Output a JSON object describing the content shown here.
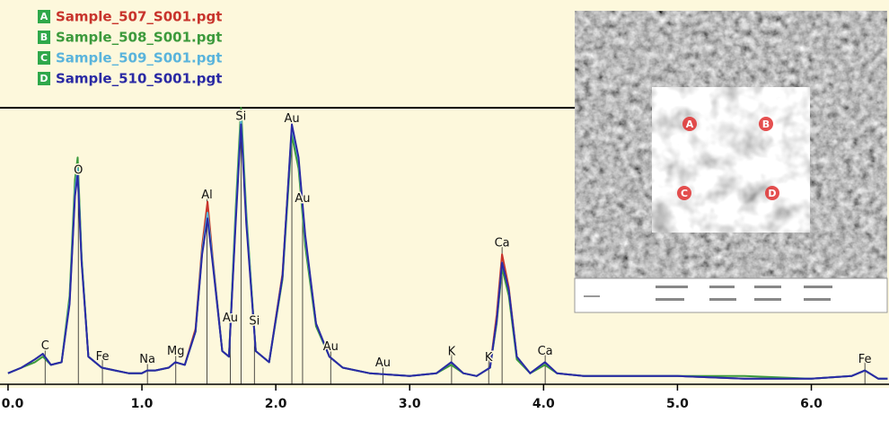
{
  "chart_data": {
    "type": "line",
    "x": [
      0.0,
      0.1,
      0.2,
      0.26,
      0.32,
      0.4,
      0.46,
      0.5,
      0.52,
      0.55,
      0.6,
      0.7,
      0.8,
      0.9,
      1.0,
      1.04,
      1.1,
      1.2,
      1.25,
      1.32,
      1.4,
      1.45,
      1.49,
      1.53,
      1.6,
      1.65,
      1.7,
      1.74,
      1.78,
      1.85,
      1.95,
      2.05,
      2.12,
      2.17,
      2.22,
      2.3,
      2.4,
      2.5,
      2.7,
      3.0,
      3.2,
      3.31,
      3.4,
      3.5,
      3.6,
      3.65,
      3.69,
      3.74,
      3.8,
      3.9,
      4.01,
      4.1,
      4.3,
      4.6,
      5.0,
      5.5,
      6.0,
      6.3,
      6.4,
      6.5,
      6.57
    ],
    "series": [
      {
        "label": "A",
        "name": "Sample_507_S001.pgt",
        "color": "#c8342c",
        "values": [
          4,
          6,
          9,
          11,
          7,
          8,
          30,
          70,
          79,
          45,
          10,
          6,
          5,
          4,
          4,
          5,
          5,
          6,
          8,
          7,
          20,
          50,
          66,
          45,
          12,
          10,
          60,
          97,
          60,
          12,
          8,
          40,
          92,
          80,
          52,
          22,
          10,
          6,
          4,
          3,
          4,
          8,
          4,
          3,
          6,
          25,
          47,
          35,
          10,
          4,
          8,
          4,
          3,
          3,
          3,
          2,
          2,
          3,
          5,
          2,
          2
        ]
      },
      {
        "label": "B",
        "name": "Sample_508_S001.pgt",
        "color": "#3c9a3c",
        "values": [
          4,
          6,
          8,
          10,
          7,
          8,
          32,
          74,
          82,
          46,
          10,
          6,
          5,
          4,
          4,
          5,
          5,
          6,
          8,
          7,
          19,
          48,
          62,
          44,
          12,
          10,
          63,
          100,
          62,
          12,
          8,
          38,
          90,
          78,
          50,
          21,
          10,
          6,
          4,
          3,
          4,
          7,
          4,
          3,
          6,
          22,
          42,
          32,
          9,
          4,
          7,
          4,
          3,
          3,
          3,
          3,
          2,
          3,
          5,
          2,
          2
        ]
      },
      {
        "label": "C",
        "name": "Sample_509_S001.pgt",
        "color": "#5ab4dc",
        "values": [
          4,
          6,
          9,
          11,
          7,
          8,
          30,
          70,
          78,
          45,
          10,
          6,
          5,
          4,
          4,
          5,
          5,
          6,
          8,
          7,
          19,
          48,
          62,
          44,
          12,
          10,
          60,
          96,
          60,
          12,
          8,
          39,
          93,
          81,
          53,
          22,
          10,
          6,
          4,
          3,
          4,
          8,
          4,
          3,
          6,
          23,
          44,
          34,
          10,
          4,
          8,
          4,
          3,
          3,
          3,
          2,
          2,
          3,
          5,
          2,
          2
        ]
      },
      {
        "label": "D",
        "name": "Sample_510_S001.pgt",
        "color": "#2a2aa4",
        "values": [
          4,
          6,
          9,
          11,
          7,
          8,
          29,
          68,
          76,
          44,
          10,
          6,
          5,
          4,
          4,
          5,
          5,
          6,
          8,
          7,
          19,
          47,
          60,
          43,
          12,
          10,
          58,
          94,
          58,
          12,
          8,
          39,
          94,
          82,
          54,
          22,
          10,
          6,
          4,
          3,
          4,
          8,
          4,
          3,
          6,
          23,
          44,
          34,
          10,
          4,
          8,
          4,
          3,
          3,
          3,
          2,
          2,
          3,
          5,
          2,
          2
        ]
      }
    ],
    "xlim": [
      -0.06,
      6.58
    ],
    "ylim": [
      0,
      100
    ],
    "xticks": [
      {
        "value": 0,
        "label": "0.0"
      },
      {
        "value": 1,
        "label": "1.0"
      },
      {
        "value": 2,
        "label": "2.0"
      },
      {
        "value": 3,
        "label": "3.0"
      },
      {
        "value": 4,
        "label": "4.0"
      },
      {
        "value": 5,
        "label": "5.0"
      },
      {
        "value": 6,
        "label": "6.0"
      }
    ],
    "peaks": [
      {
        "text": "C",
        "x": 0.277
      },
      {
        "text": "O",
        "x": 0.525
      },
      {
        "text": "Fe",
        "x": 0.705
      },
      {
        "text": "Na",
        "x": 1.041
      },
      {
        "text": "Mg",
        "x": 1.253
      },
      {
        "text": "Al",
        "x": 1.486
      },
      {
        "text": "Au",
        "x": 1.66
      },
      {
        "text": "Si",
        "x": 1.74
      },
      {
        "text": "Si",
        "x": 1.84
      },
      {
        "text": "Au",
        "x": 2.12
      },
      {
        "text": "Au",
        "x": 2.2
      },
      {
        "text": "Au",
        "x": 2.41
      },
      {
        "text": "Au",
        "x": 2.8
      },
      {
        "text": "K",
        "x": 3.313
      },
      {
        "text": "K",
        "x": 3.59
      },
      {
        "text": "Ca",
        "x": 3.69
      },
      {
        "text": "Ca",
        "x": 4.012
      },
      {
        "text": "Fe",
        "x": 6.4
      }
    ]
  }
}
